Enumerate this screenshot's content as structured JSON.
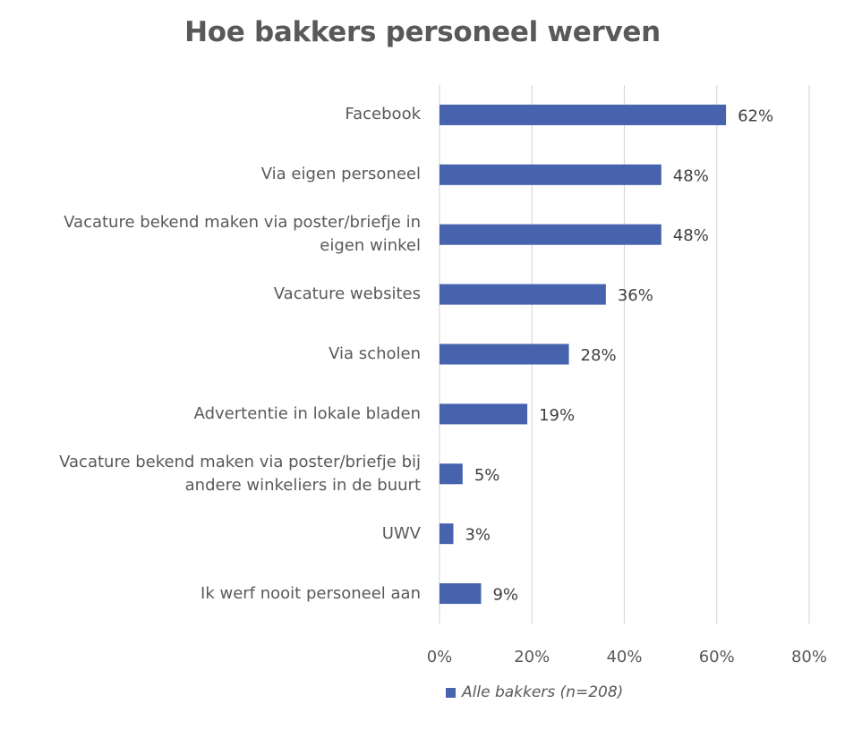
{
  "chart_data": {
    "type": "bar",
    "orientation": "horizontal",
    "title": "Hoe bakkers personeel werven",
    "categories": [
      "Facebook",
      "Via eigen personeel",
      "Vacature bekend maken via poster/briefje in eigen winkel",
      "Vacature websites",
      "Via scholen",
      "Advertentie in lokale bladen",
      "Vacature bekend maken via poster/briefje bij andere winkeliers in de buurt",
      "UWV",
      "Ik werf nooit personeel aan"
    ],
    "category_lines": [
      [
        "Facebook"
      ],
      [
        "Via eigen personeel"
      ],
      [
        "Vacature bekend maken via poster/briefje in",
        "eigen winkel"
      ],
      [
        "Vacature websites"
      ],
      [
        "Via scholen"
      ],
      [
        "Advertentie in lokale bladen"
      ],
      [
        "Vacature bekend maken via poster/briefje bij",
        "andere winkeliers in de buurt"
      ],
      [
        "UWV"
      ],
      [
        "Ik werf nooit personeel aan"
      ]
    ],
    "series": [
      {
        "name": "Alle bakkers (n=208)",
        "values": [
          62,
          48,
          48,
          36,
          28,
          19,
          5,
          3,
          9
        ],
        "labels": [
          "62%",
          "48%",
          "48%",
          "36%",
          "28%",
          "19%",
          "5%",
          "3%",
          "9%"
        ],
        "color": "#4763ae"
      }
    ],
    "xlim": [
      0,
      80
    ],
    "xticks": [
      0,
      20,
      40,
      60,
      80
    ],
    "xtick_labels": [
      "0%",
      "20%",
      "40%",
      "60%",
      "80%"
    ],
    "grid": "vertical",
    "legend": "bottom"
  }
}
